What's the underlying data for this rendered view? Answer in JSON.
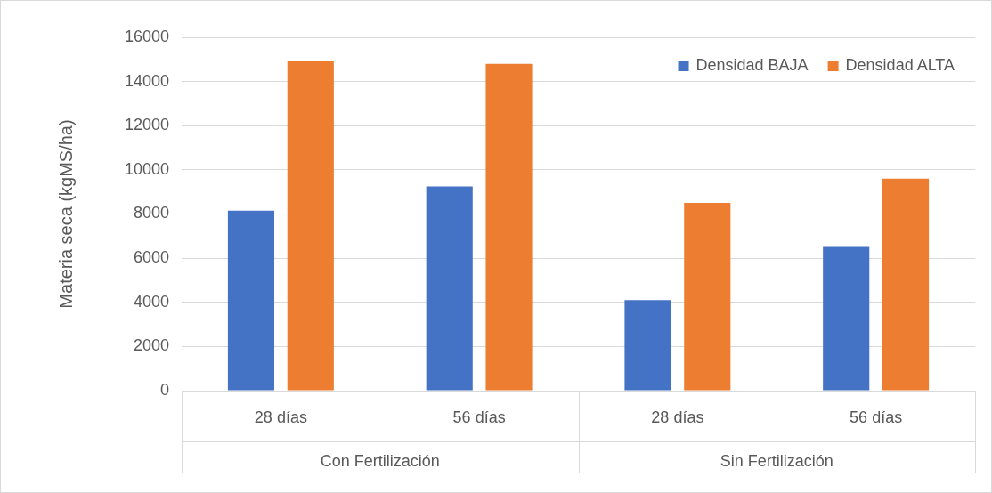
{
  "chart_data": {
    "type": "bar",
    "ylabel": "Materia seca (kgMS/ha)",
    "categories": [
      "28 días",
      "56 días",
      "28 días",
      "56 días"
    ],
    "series": [
      {
        "name": "Densidad BAJA",
        "color": "#4472c4",
        "values": [
          8150,
          9250,
          4100,
          6550
        ]
      },
      {
        "name": "Densidad ALTA",
        "color": "#ed7d31",
        "values": [
          14950,
          14800,
          8500,
          9600
        ]
      }
    ],
    "ylim": [
      0,
      16000
    ],
    "yticks": [
      0,
      2000,
      4000,
      6000,
      8000,
      10000,
      12000,
      14000,
      16000
    ],
    "grid": "y",
    "legend": "top right",
    "annotations": [
      "Con Fertilización",
      "Sin Fertilización"
    ]
  }
}
